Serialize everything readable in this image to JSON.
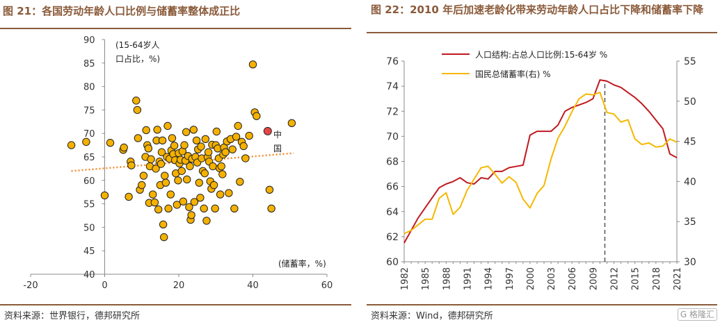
{
  "left": {
    "title": "图 21：各国劳动年龄人口比例与储蓄率整体成正比",
    "source": "资料来源：世界银行，德邦研究所",
    "chart_data": {
      "type": "scatter",
      "ylabel_line1": "(15-64岁人",
      "ylabel_line2": "口占比，%)",
      "xlabel": "(储蓄率，%)",
      "xlim": [
        -20,
        60
      ],
      "ylim": [
        40,
        90
      ],
      "xticks": [
        -20,
        0,
        20,
        40,
        60
      ],
      "yticks": [
        40,
        45,
        50,
        55,
        60,
        65,
        70,
        75,
        80,
        85,
        90
      ],
      "trend_color": "#f08a2a",
      "trendline": [
        [
          -9,
          62.0
        ],
        [
          51,
          65.8
        ]
      ],
      "point_color": "#f5b100",
      "highlight_color": "#e84545",
      "highlight": {
        "label_line1": "中",
        "label_line2": "国",
        "x": 44,
        "y": 70.5
      },
      "points": [
        [
          -9,
          67.5
        ],
        [
          -5,
          68.2
        ],
        [
          0,
          56.8
        ],
        [
          1.5,
          68
        ],
        [
          5,
          66.5
        ],
        [
          5.2,
          67
        ],
        [
          6.5,
          56.5
        ],
        [
          7,
          64
        ],
        [
          7.2,
          63.2
        ],
        [
          8.5,
          77
        ],
        [
          8.8,
          75
        ],
        [
          9,
          69
        ],
        [
          9.5,
          58
        ],
        [
          10,
          59
        ],
        [
          10.5,
          61
        ],
        [
          11,
          65
        ],
        [
          11.2,
          70.7
        ],
        [
          11.5,
          67.5
        ],
        [
          11.8,
          66.8
        ],
        [
          12,
          55.2
        ],
        [
          12.2,
          63
        ],
        [
          12.5,
          64.5
        ],
        [
          13,
          57
        ],
        [
          13.5,
          55.3
        ],
        [
          13.8,
          62.5
        ],
        [
          14,
          68.5
        ],
        [
          14.2,
          70.8
        ],
        [
          14.5,
          53.8
        ],
        [
          14.8,
          64
        ],
        [
          15,
          59
        ],
        [
          15.2,
          63.5
        ],
        [
          15.4,
          66
        ],
        [
          15.6,
          68.5
        ],
        [
          15.8,
          50.6
        ],
        [
          16,
          47.9
        ],
        [
          16.2,
          61
        ],
        [
          16.5,
          59.5
        ],
        [
          16.8,
          65
        ],
        [
          17,
          71.6
        ],
        [
          17.2,
          54
        ],
        [
          17.5,
          64.6
        ],
        [
          17.8,
          57
        ],
        [
          18,
          66.4
        ],
        [
          18.2,
          69
        ],
        [
          18.5,
          65.6
        ],
        [
          18.8,
          67.4
        ],
        [
          19,
          64.3
        ],
        [
          19.2,
          61.5
        ],
        [
          19.5,
          54.8
        ],
        [
          19.8,
          60
        ],
        [
          20,
          65.8
        ],
        [
          20.2,
          63.6
        ],
        [
          20.5,
          64.4
        ],
        [
          20.8,
          62
        ],
        [
          21,
          66.2
        ],
        [
          21.2,
          55.5
        ],
        [
          21.5,
          67.5
        ],
        [
          21.8,
          64.2
        ],
        [
          22,
          70.3
        ],
        [
          22.2,
          60.2
        ],
        [
          22.5,
          65.2
        ],
        [
          22.8,
          54.3
        ],
        [
          23,
          63
        ],
        [
          23.2,
          51.6
        ],
        [
          23.4,
          52.6
        ],
        [
          23.6,
          64.6
        ],
        [
          24,
          70.8
        ],
        [
          24.2,
          55.4
        ],
        [
          24.5,
          65
        ],
        [
          24.8,
          68.5
        ],
        [
          25,
          63.8
        ],
        [
          25.2,
          66.6
        ],
        [
          25.5,
          59.5
        ],
        [
          25.8,
          56.3
        ],
        [
          26,
          67.2
        ],
        [
          26.2,
          64.7
        ],
        [
          26.5,
          62
        ],
        [
          26.8,
          54
        ],
        [
          27,
          61.5
        ],
        [
          27.2,
          68.8
        ],
        [
          27.5,
          51.4
        ],
        [
          27.8,
          65
        ],
        [
          28,
          66
        ],
        [
          28.2,
          64
        ],
        [
          28.5,
          59.8
        ],
        [
          28.8,
          58.2
        ],
        [
          29,
          67.6
        ],
        [
          29.2,
          63
        ],
        [
          29.5,
          59
        ],
        [
          29.8,
          54
        ],
        [
          30,
          67.5
        ],
        [
          30.2,
          70.4
        ],
        [
          30.5,
          66.8
        ],
        [
          30.8,
          64.7
        ],
        [
          31,
          62.6
        ],
        [
          31.2,
          57
        ],
        [
          31.5,
          63
        ],
        [
          31.8,
          61.3
        ],
        [
          32,
          65.5
        ],
        [
          32.2,
          67
        ],
        [
          32.6,
          66
        ],
        [
          33,
          68.3
        ],
        [
          33.5,
          57.3
        ],
        [
          34,
          68.8
        ],
        [
          34.5,
          66.6
        ],
        [
          35,
          54
        ],
        [
          35.5,
          69.3
        ],
        [
          36,
          71.6
        ],
        [
          36.5,
          59.7
        ],
        [
          37,
          68.2
        ],
        [
          37.5,
          67.3
        ],
        [
          38,
          64.7
        ],
        [
          39,
          69.5
        ],
        [
          40,
          84.7
        ],
        [
          40.5,
          74.5
        ],
        [
          41,
          73.7
        ],
        [
          44.5,
          58
        ],
        [
          45,
          54
        ],
        [
          50.5,
          72.2
        ]
      ]
    }
  },
  "right": {
    "title": "图 22：2010 年后加速老龄化带来劳动年龄人口占比下降和储蓄率下降",
    "source": "资料来源：Wind，德邦研究所",
    "watermark": "G 格隆汇",
    "chart_data": {
      "type": "line",
      "x": [
        1982,
        1983,
        1984,
        1985,
        1986,
        1987,
        1988,
        1989,
        1990,
        1991,
        1992,
        1993,
        1994,
        1995,
        1996,
        1997,
        1998,
        1999,
        2000,
        2001,
        2002,
        2003,
        2004,
        2005,
        2006,
        2007,
        2008,
        2009,
        2010,
        2011,
        2012,
        2013,
        2014,
        2015,
        2016,
        2017,
        2018,
        2019,
        2020,
        2021
      ],
      "xticks": [
        1982,
        1985,
        1988,
        1991,
        1994,
        1997,
        2000,
        2003,
        2006,
        2009,
        2012,
        2015,
        2018,
        2021
      ],
      "ylim_left": [
        60,
        76
      ],
      "yticks_left": [
        60,
        62,
        64,
        66,
        68,
        70,
        72,
        74,
        76
      ],
      "ylim_right": [
        30,
        55
      ],
      "yticks_right": [
        30,
        35,
        40,
        45,
        50,
        55
      ],
      "vline_x": 2010.7,
      "series": [
        {
          "name": "人口结构:占总人口比例:15-64岁 %",
          "axis": "left",
          "color": "#c0191f",
          "values": [
            61.5,
            62.5,
            63.5,
            64.3,
            65.1,
            65.9,
            66.2,
            66.4,
            66.7,
            66.3,
            66.2,
            66.7,
            66.6,
            67.2,
            67.2,
            67.5,
            67.6,
            67.7,
            70.1,
            70.4,
            70.4,
            70.4,
            70.9,
            72.0,
            72.3,
            72.5,
            72.7,
            73.0,
            74.5,
            74.4,
            74.1,
            73.9,
            73.5,
            73.1,
            72.6,
            72.0,
            71.3,
            70.6,
            68.6,
            68.3
          ]
        },
        {
          "name": "国民总储蓄率(右) %",
          "axis": "right",
          "color": "#f5b800",
          "values": [
            33.5,
            33.9,
            34.6,
            35.3,
            35.3,
            37.9,
            38.6,
            35.9,
            36.8,
            38.9,
            40.3,
            41.7,
            41.9,
            40.9,
            39.8,
            40.6,
            39.9,
            37.8,
            36.7,
            38.5,
            39.5,
            42.8,
            45.4,
            46.9,
            48.7,
            50.3,
            50.9,
            50.8,
            51.1,
            48.6,
            48.4,
            47.4,
            47.7,
            45.3,
            44.6,
            44.8,
            44.3,
            44.4,
            45.3,
            44.9
          ]
        }
      ]
    }
  }
}
